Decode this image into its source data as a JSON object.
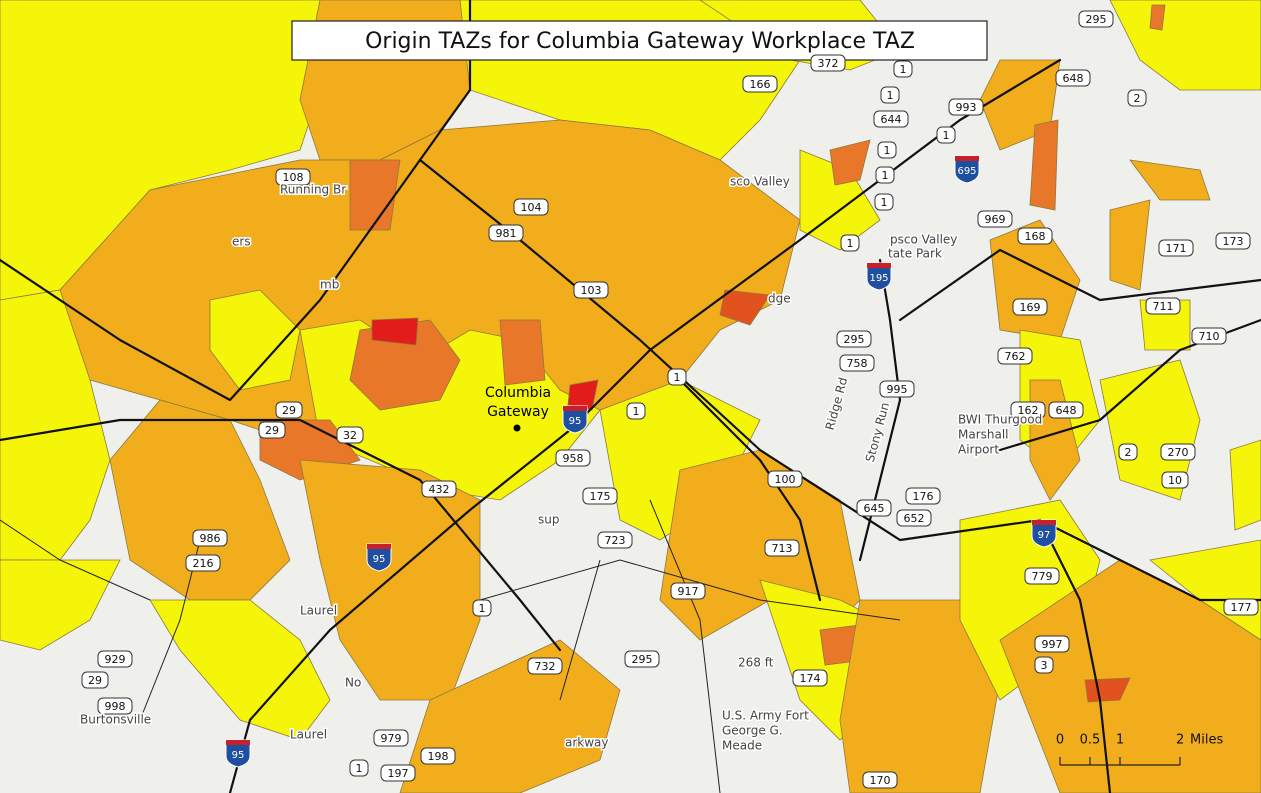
{
  "title": "Origin TAZs for Columbia Gateway Workplace TAZ",
  "workplace": [
    "Columbia",
    "Gateway"
  ],
  "places": [
    "Running Br",
    "Laurel",
    "Laurel",
    "Burtonsville",
    "sco Valley",
    "psco Valley",
    "tate Park",
    "dge",
    "Ridge Rd",
    "Stony Run",
    "268 ft",
    "U.S. Army Fort",
    "George G.",
    "Meade",
    "BWI Thurgood",
    "Marshall",
    "Airport",
    "arkway",
    "ers",
    "mb",
    "sup",
    "No"
  ],
  "routes": [
    166,
    372,
    1,
    1,
    644,
    993,
    695,
    1,
    1,
    1,
    1,
    1,
    108,
    104,
    981,
    103,
    1,
    1,
    29,
    29,
    32,
    432,
    95,
    958,
    175,
    723,
    95,
    95,
    195,
    295,
    758,
    995,
    100,
    645,
    176,
    652,
    713,
    917,
    732,
    295,
    174,
    170,
    986,
    216,
    929,
    29,
    998,
    979,
    198,
    197,
    1,
    1,
    97,
    779,
    997,
    3,
    162,
    648,
    762,
    169,
    168,
    969,
    711,
    710,
    171,
    173,
    2,
    270,
    10,
    177,
    648,
    2,
    295
  ],
  "scale_bar": {
    "ticks": [
      0,
      0.5,
      1,
      2
    ],
    "unit": "Miles"
  }
}
